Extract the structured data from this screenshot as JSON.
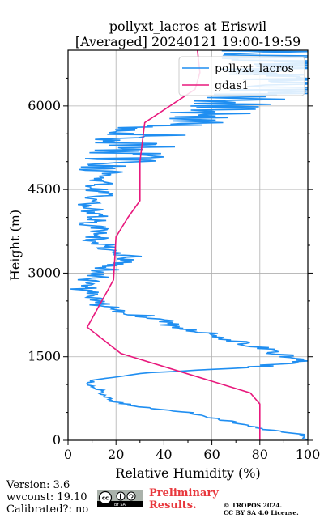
{
  "colors": {
    "lidar": "#1f8ef1",
    "gdas": "#e8197d",
    "grid": "#b0b0b0",
    "prelim": "#e8383d"
  },
  "chart_data": {
    "type": "line",
    "title_line1": "pollyxt_lacros at Eriswil",
    "title_line2": "[Averaged] 20240121 19:00-19:59",
    "xlabel": "Relative Humidity (%)",
    "ylabel": "Height (m)",
    "xlim": [
      0,
      100
    ],
    "ylim": [
      0,
      7000
    ],
    "xticks": [
      0,
      20,
      40,
      60,
      80,
      100
    ],
    "yticks": [
      0,
      1500,
      3000,
      4500,
      6000
    ],
    "grid": true,
    "legend_position": "top-right",
    "series": [
      {
        "name": "pollyxt_lacros",
        "color": "#1f8ef1",
        "profile": [
          [
            0,
            100
          ],
          [
            100,
            98
          ],
          [
            200,
            82
          ],
          [
            300,
            72
          ],
          [
            400,
            60
          ],
          [
            500,
            50
          ],
          [
            600,
            30
          ],
          [
            700,
            18
          ],
          [
            800,
            16
          ],
          [
            900,
            13
          ],
          [
            1000,
            8
          ],
          [
            1100,
            12
          ],
          [
            1200,
            30
          ],
          [
            1300,
            72
          ],
          [
            1400,
            98
          ],
          [
            1500,
            92
          ],
          [
            1600,
            85
          ],
          [
            1700,
            78
          ],
          [
            1800,
            68
          ],
          [
            1900,
            62
          ],
          [
            2000,
            50
          ],
          [
            2100,
            42
          ],
          [
            2200,
            35
          ],
          [
            2300,
            25
          ],
          [
            2400,
            15
          ],
          [
            2500,
            10
          ],
          [
            2600,
            8
          ],
          [
            2700,
            6
          ],
          [
            2800,
            7
          ],
          [
            2900,
            10
          ],
          [
            3000,
            14
          ],
          [
            3100,
            17
          ],
          [
            3200,
            22
          ],
          [
            3300,
            26
          ],
          [
            3400,
            20
          ],
          [
            3500,
            15
          ],
          [
            3600,
            12
          ],
          [
            3700,
            14
          ],
          [
            3800,
            11
          ],
          [
            3900,
            9
          ],
          [
            4000,
            12
          ],
          [
            4100,
            10
          ],
          [
            4200,
            8
          ],
          [
            4300,
            10
          ],
          [
            4400,
            14
          ],
          [
            4500,
            12
          ],
          [
            4600,
            13
          ],
          [
            4700,
            15
          ],
          [
            4800,
            18
          ],
          [
            4900,
            20
          ],
          [
            5000,
            22
          ],
          [
            5100,
            24
          ],
          [
            5200,
            26
          ],
          [
            5300,
            30
          ],
          [
            5400,
            28
          ],
          [
            5500,
            33
          ],
          [
            5600,
            36
          ],
          [
            5700,
            48
          ],
          [
            5800,
            55
          ],
          [
            5900,
            62
          ],
          [
            6000,
            70
          ],
          [
            6100,
            78
          ],
          [
            6200,
            85
          ],
          [
            6300,
            90
          ],
          [
            6400,
            88
          ],
          [
            6500,
            92
          ],
          [
            6600,
            90
          ],
          [
            6700,
            94
          ],
          [
            6800,
            92
          ],
          [
            6900,
            96
          ],
          [
            7000,
            95
          ]
        ]
      },
      {
        "name": "gdas1",
        "color": "#e8197d",
        "points": [
          [
            80,
            0
          ],
          [
            80,
            650
          ],
          [
            76,
            850
          ],
          [
            22,
            1560
          ],
          [
            8,
            2030
          ],
          [
            19,
            2880
          ],
          [
            20,
            3650
          ],
          [
            25,
            4000
          ],
          [
            30,
            4300
          ],
          [
            30,
            5000
          ],
          [
            32,
            5700
          ],
          [
            53,
            6300
          ],
          [
            55,
            6600
          ],
          [
            54,
            7000
          ]
        ]
      }
    ]
  },
  "footer": {
    "version": "Version: 3.6",
    "wvconst": "wvconst:  19.10",
    "calibrated": "Calibrated?: no",
    "preliminary_line1": "Preliminary",
    "preliminary_line2": "Results.",
    "copyright_line1": "© TROPOS 2024.",
    "copyright_line2": "CC BY SA 4.0 License.",
    "license_badge": "cc-by-sa-icon"
  }
}
